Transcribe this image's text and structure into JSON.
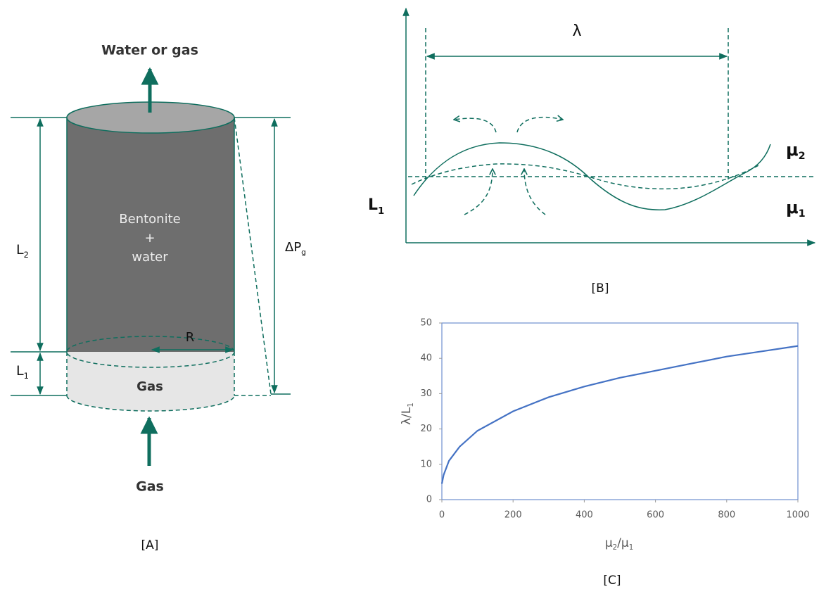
{
  "panel_a": {
    "top_label": "Water or gas",
    "body_label": [
      "Bentonite",
      "+",
      "water"
    ],
    "gas_label": "Gas",
    "bottom_label": "Gas",
    "radius_label": "R",
    "l2": [
      {
        "text": "L"
      },
      {
        "text": "2",
        "sub": true
      }
    ],
    "l1": [
      {
        "text": "L"
      },
      {
        "text": "1",
        "sub": true
      }
    ],
    "dp": [
      {
        "text": "ΔP"
      },
      {
        "text": "g",
        "sub": true
      }
    ],
    "caption": "[A]"
  },
  "panel_b": {
    "lambda": "λ",
    "l1": [
      {
        "text": "L"
      },
      {
        "text": "1",
        "sub": true
      }
    ],
    "mu2": [
      {
        "text": "μ"
      },
      {
        "text": "2",
        "sub": true
      }
    ],
    "mu1": [
      {
        "text": "μ"
      },
      {
        "text": "1",
        "sub": true
      }
    ],
    "caption": "[B]"
  },
  "chart_data": {
    "type": "line",
    "caption": "[C]",
    "x_label": [
      {
        "text": "μ"
      },
      {
        "text": "2",
        "sub": true
      },
      {
        "text": "/μ"
      },
      {
        "text": "1",
        "sub": true
      }
    ],
    "y_label": [
      {
        "text": "λ/L"
      },
      {
        "text": "1",
        "sub": true
      }
    ],
    "series": [
      {
        "color": "#4472c4",
        "x": [
          0,
          5,
          20,
          50,
          100,
          200,
          300,
          400,
          500,
          600,
          700,
          800,
          900,
          1000
        ],
        "values": [
          4.5,
          7,
          11,
          15,
          19.5,
          25,
          29,
          32,
          34.5,
          36.5,
          38.5,
          40.5,
          42,
          43.5
        ]
      }
    ],
    "xlim": [
      0,
      1000
    ],
    "xticks": [
      0,
      200,
      400,
      600,
      800,
      1000
    ],
    "ylim": [
      0,
      50
    ],
    "yticks": [
      0,
      10,
      20,
      30,
      40,
      50
    ]
  }
}
